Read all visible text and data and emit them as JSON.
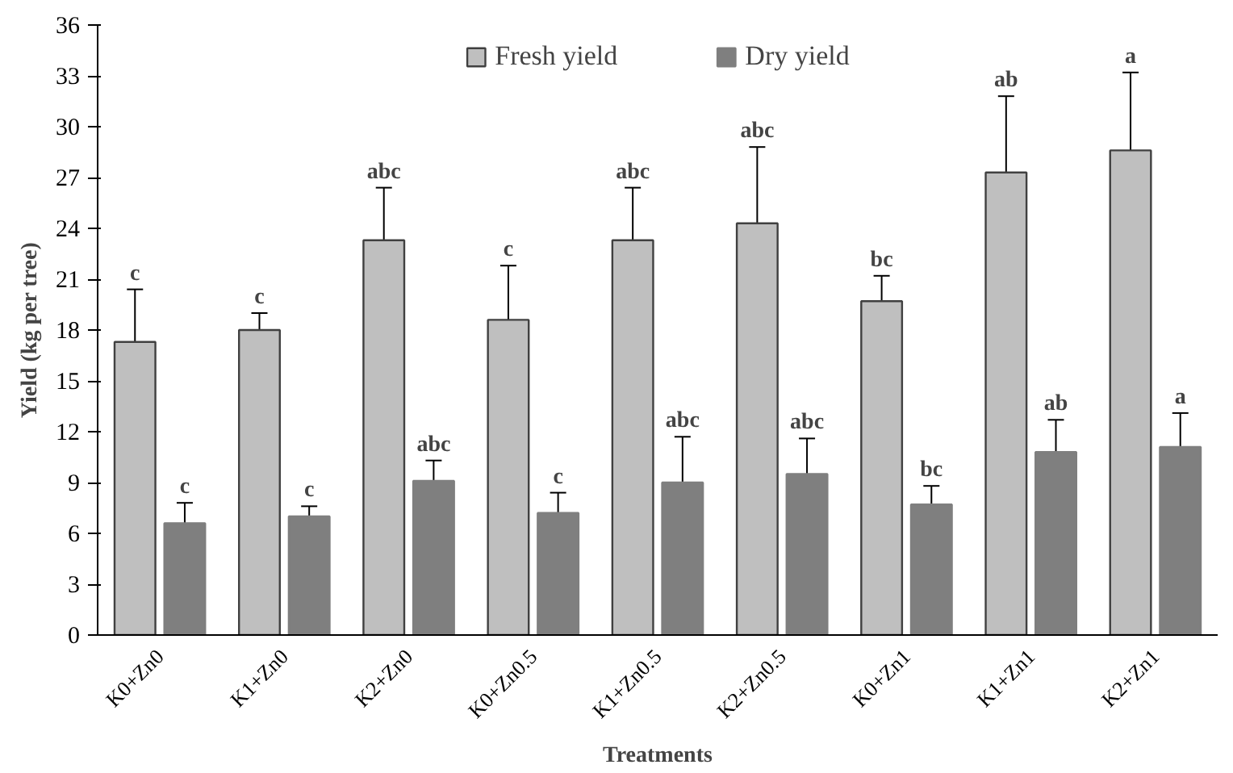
{
  "chart_data": {
    "type": "bar",
    "xlabel": "Treatments",
    "ylabel": "Yield (kg per tree)",
    "categories": [
      "K0+Zn0",
      "K1+Zn0",
      "K2+Zn0",
      "K0+Zn0.5",
      "K1+Zn0.5",
      "K2+Zn0.5",
      "K0+Zn1",
      "K1+Zn1",
      "K2+Zn1"
    ],
    "series": [
      {
        "name": "Fresh yield",
        "color": "#bfbfbf",
        "values": [
          17.3,
          18.0,
          23.3,
          18.6,
          23.3,
          24.3,
          19.7,
          27.3,
          28.6
        ],
        "errors": [
          3.1,
          1.0,
          3.1,
          3.2,
          3.1,
          4.5,
          1.5,
          4.5,
          4.6
        ]
      },
      {
        "name": "Dry yield",
        "color": "#7f7f7f",
        "values": [
          6.6,
          7.0,
          9.1,
          7.2,
          9.0,
          9.5,
          7.7,
          10.8,
          11.1
        ],
        "errors": [
          1.2,
          0.6,
          1.2,
          1.2,
          2.7,
          2.1,
          1.1,
          1.9,
          2.0
        ]
      }
    ],
    "ylim": [
      0,
      36
    ],
    "yticks": [
      0,
      3,
      6,
      9,
      12,
      15,
      18,
      21,
      24,
      27,
      30,
      33,
      36
    ],
    "grid": false,
    "legend": "top",
    "annotations": [
      "c",
      "c",
      "abc",
      "c",
      "abc",
      "abc",
      "bc",
      "ab",
      "a",
      "c",
      "c",
      "abc",
      "c",
      "abc",
      "abc",
      "bc",
      "ab",
      "a"
    ]
  }
}
